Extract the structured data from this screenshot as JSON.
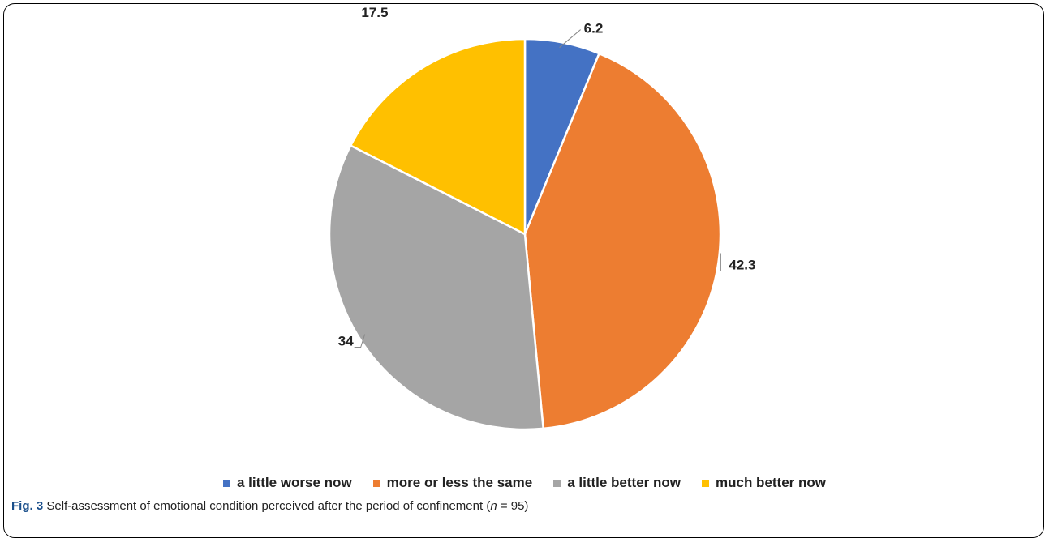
{
  "chart_data": {
    "type": "pie",
    "categories": [
      "a little worse now",
      "more or less the same",
      "a little better now",
      "much better now"
    ],
    "values": [
      6.2,
      42.3,
      34,
      17.5
    ],
    "value_labels": [
      "6.2",
      "42.3",
      "34",
      "17.5"
    ],
    "colors": [
      "#4472C4",
      "#ED7D31",
      "#A5A5A5",
      "#FFC000"
    ],
    "legend_position": "bottom"
  },
  "caption": {
    "fig_label": "Fig. 3",
    "text_before": "Self-assessment of emotional condition perceived after the period of confinement (",
    "n_symbol": "n",
    "text_after": " = 95)"
  }
}
